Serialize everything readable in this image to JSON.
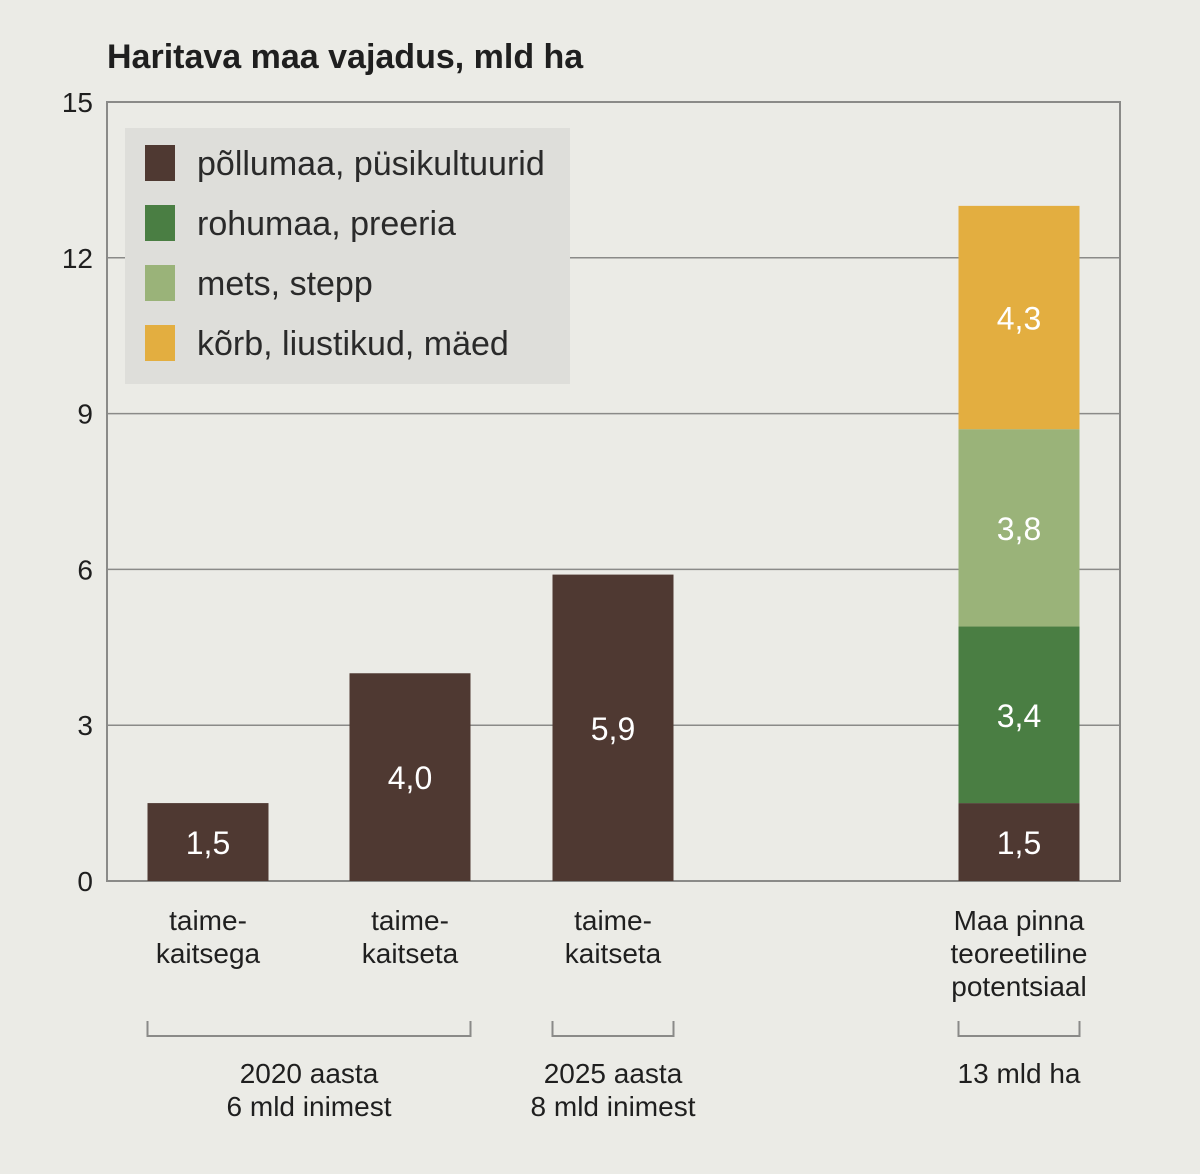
{
  "chart_data": {
    "type": "bar",
    "title": "Haritava maa vajadus, mld ha",
    "ylim": [
      0,
      15
    ],
    "yticks": [
      0,
      3,
      6,
      9,
      12,
      15
    ],
    "grid": true,
    "legend_position": "top-left",
    "categories": [
      [
        "taime-",
        "kaitsega"
      ],
      [
        "taime-",
        "kaitseta"
      ],
      [
        "taime-",
        "kaitseta"
      ],
      [
        "Maa pinna",
        "teoreetiline",
        "potentsiaal"
      ]
    ],
    "series": [
      {
        "name": "põllumaa, püsikultuurid",
        "color": "#4f3932",
        "values": [
          1.5,
          4.0,
          5.9,
          1.5
        ],
        "labels": [
          "1,5",
          "4,0",
          "5,9",
          "1,5"
        ]
      },
      {
        "name": "rohumaa, preeria",
        "color": "#4a7e43",
        "values": [
          0,
          0,
          0,
          3.4
        ],
        "labels": [
          "",
          "",
          "",
          "3,4"
        ]
      },
      {
        "name": "mets, stepp",
        "color": "#9ab379",
        "values": [
          0,
          0,
          0,
          3.8
        ],
        "labels": [
          "",
          "",
          "",
          "3,8"
        ]
      },
      {
        "name": "kõrb, liustikud, mäed",
        "color": "#e3ae40",
        "values": [
          0,
          0,
          0,
          4.3
        ],
        "labels": [
          "",
          "",
          "",
          "4,3"
        ]
      }
    ],
    "groups": [
      {
        "bars": [
          0,
          1
        ],
        "label": [
          "2020 aasta",
          "6 mld inimest"
        ]
      },
      {
        "bars": [
          2
        ],
        "label": [
          "2025 aasta",
          "8 mld inimest"
        ]
      },
      {
        "bars": [
          3
        ],
        "label": [
          "13 mld ha"
        ]
      }
    ]
  }
}
